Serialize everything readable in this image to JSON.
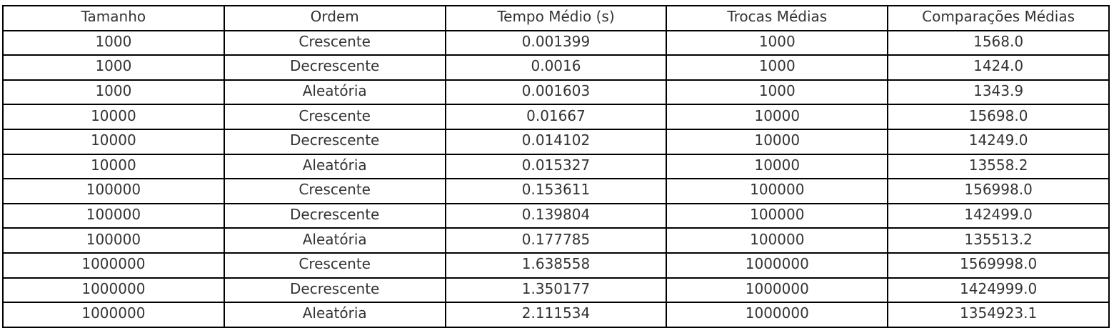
{
  "chart_data": {
    "type": "table",
    "columns": [
      "Tamanho",
      "Ordem",
      "Tempo Médio (s)",
      "Trocas Médias",
      "Comparações Médias"
    ],
    "rows": [
      [
        "1000",
        "Crescente",
        "0.001399",
        "1000",
        "1568.0"
      ],
      [
        "1000",
        "Decrescente",
        "0.0016",
        "1000",
        "1424.0"
      ],
      [
        "1000",
        "Aleatória",
        "0.001603",
        "1000",
        "1343.9"
      ],
      [
        "10000",
        "Crescente",
        "0.01667",
        "10000",
        "15698.0"
      ],
      [
        "10000",
        "Decrescente",
        "0.014102",
        "10000",
        "14249.0"
      ],
      [
        "10000",
        "Aleatória",
        "0.015327",
        "10000",
        "13558.2"
      ],
      [
        "100000",
        "Crescente",
        "0.153611",
        "100000",
        "156998.0"
      ],
      [
        "100000",
        "Decrescente",
        "0.139804",
        "100000",
        "142499.0"
      ],
      [
        "100000",
        "Aleatória",
        "0.177785",
        "100000",
        "135513.2"
      ],
      [
        "1000000",
        "Crescente",
        "1.638558",
        "1000000",
        "1569998.0"
      ],
      [
        "1000000",
        "Decrescente",
        "1.350177",
        "1000000",
        "1424999.0"
      ],
      [
        "1000000",
        "Aleatória",
        "2.111534",
        "1000000",
        "1354923.1"
      ]
    ]
  },
  "colors": {
    "text": "#333333",
    "grid": "#000000",
    "background": "#ffffff"
  }
}
